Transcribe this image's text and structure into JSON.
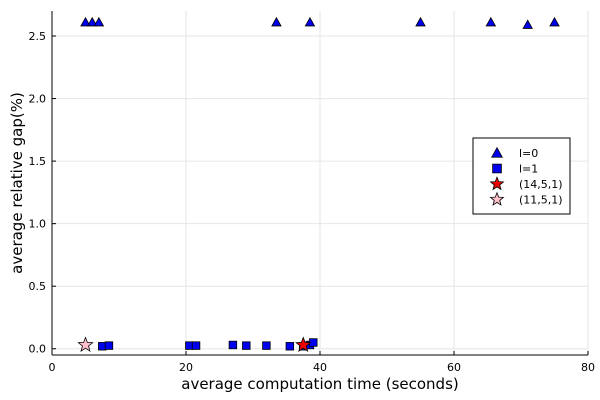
{
  "chart_data": {
    "type": "scatter",
    "title": "",
    "xlabel": "average computation time (seconds)",
    "ylabel": "average relative gap(%)",
    "xlim": [
      0,
      80
    ],
    "ylim": [
      -0.05,
      2.7
    ],
    "xticks": [
      0,
      20,
      40,
      60,
      80
    ],
    "yticks": [
      0.0,
      0.5,
      1.0,
      1.5,
      2.0,
      2.5
    ],
    "xtick_labels": [
      "0",
      "20",
      "40",
      "60",
      "80"
    ],
    "ytick_labels": [
      "0.0",
      "0.5",
      "1.0",
      "1.5",
      "2.0",
      "2.5"
    ],
    "grid": true,
    "legend_position": "right",
    "series": [
      {
        "name": "l=0",
        "marker": "triangle",
        "color": "#0000ee",
        "points": [
          {
            "x": 5.0,
            "y": 2.61
          },
          {
            "x": 6.0,
            "y": 2.61
          },
          {
            "x": 7.0,
            "y": 2.61
          },
          {
            "x": 33.5,
            "y": 2.61
          },
          {
            "x": 38.5,
            "y": 2.61
          },
          {
            "x": 55.0,
            "y": 2.61
          },
          {
            "x": 65.5,
            "y": 2.61
          },
          {
            "x": 71.0,
            "y": 2.59
          },
          {
            "x": 75.0,
            "y": 2.61
          }
        ]
      },
      {
        "name": "l=1",
        "marker": "square",
        "color": "#0000ee",
        "points": [
          {
            "x": 7.5,
            "y": 0.02
          },
          {
            "x": 8.5,
            "y": 0.025
          },
          {
            "x": 20.5,
            "y": 0.025
          },
          {
            "x": 21.5,
            "y": 0.025
          },
          {
            "x": 27.0,
            "y": 0.03
          },
          {
            "x": 29.0,
            "y": 0.025
          },
          {
            "x": 32.0,
            "y": 0.025
          },
          {
            "x": 35.5,
            "y": 0.02
          },
          {
            "x": 37.5,
            "y": 0.02
          },
          {
            "x": 38.5,
            "y": 0.03
          },
          {
            "x": 39.0,
            "y": 0.05
          }
        ]
      },
      {
        "name": "(14,5,1)",
        "marker": "star",
        "color": "#ee0000",
        "points": [
          {
            "x": 37.5,
            "y": 0.03
          }
        ]
      },
      {
        "name": "(11,5,1)",
        "marker": "star",
        "color": "#ffc0cb",
        "points": [
          {
            "x": 5.0,
            "y": 0.03
          }
        ]
      }
    ]
  }
}
